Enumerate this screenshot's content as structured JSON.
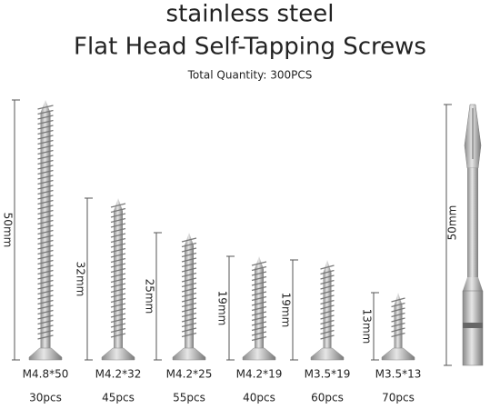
{
  "header": {
    "title_line1": "stainless steel",
    "title_line2": "Flat Head Self-Tapping Screws",
    "subtitle": "Total Quantity: 300PCS"
  },
  "screws": [
    {
      "length": "50mm",
      "size": "M4.8*50",
      "count": "30pcs"
    },
    {
      "length": "32mm",
      "size": "M4.2*32",
      "count": "45pcs"
    },
    {
      "length": "25mm",
      "size": "M4.2*25",
      "count": "55pcs"
    },
    {
      "length": "19mm",
      "size": "M4.2*19",
      "count": "40pcs"
    },
    {
      "length": "19mm",
      "size": "M3.5*19",
      "count": "60pcs"
    },
    {
      "length": "13mm",
      "size": "M3.5*13",
      "count": "70pcs"
    }
  ],
  "bit": {
    "length": "50mm"
  }
}
